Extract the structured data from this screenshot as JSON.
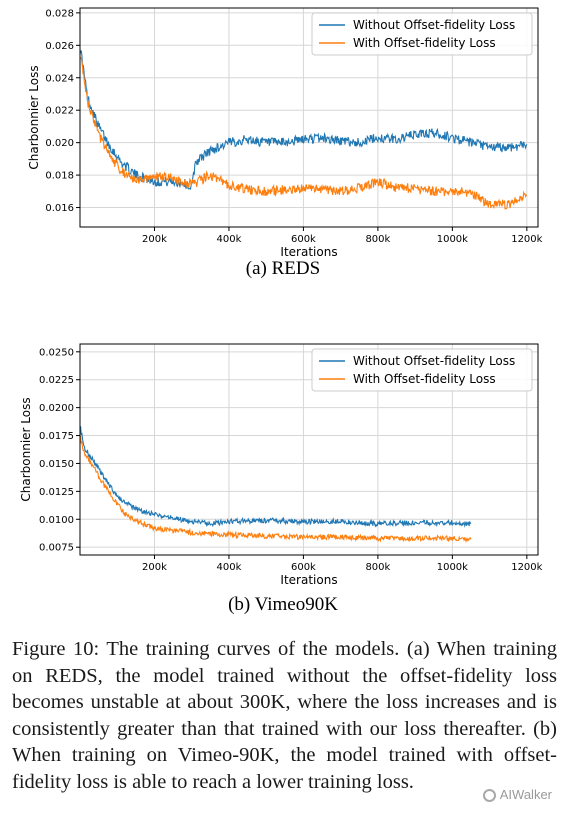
{
  "chart_data": [
    {
      "type": "line",
      "xlabel": "Iterations",
      "ylabel": "Charbonnier Loss",
      "xlim": [
        0,
        1230000
      ],
      "ylim": [
        0.0148,
        0.0283
      ],
      "xticks": [
        200000,
        400000,
        600000,
        800000,
        1000000,
        1200000
      ],
      "xtick_labels": [
        "200k",
        "400k",
        "600k",
        "800k",
        "1000k",
        "1200k"
      ],
      "yticks": [
        0.016,
        0.018,
        0.02,
        0.022,
        0.024,
        0.026,
        0.028
      ],
      "ytick_labels": [
        "0.016",
        "0.018",
        "0.020",
        "0.022",
        "0.024",
        "0.026",
        "0.028"
      ],
      "grid": true,
      "legend": "top-right",
      "series": [
        {
          "name": "Without Offset-fidelity Loss",
          "color": "#1f77b4",
          "x": [
            0,
            20000,
            50000,
            80000,
            110000,
            150000,
            200000,
            250000,
            280000,
            300000,
            310000,
            350000,
            400000,
            450000,
            500000,
            550000,
            600000,
            650000,
            700000,
            750000,
            800000,
            850000,
            900000,
            950000,
            1000000,
            1050000,
            1100000,
            1150000,
            1200000
          ],
          "y": [
            0.026,
            0.0228,
            0.021,
            0.0198,
            0.0188,
            0.018,
            0.0176,
            0.0176,
            0.0175,
            0.0172,
            0.0188,
            0.0195,
            0.02,
            0.0202,
            0.02,
            0.02,
            0.0202,
            0.0203,
            0.0201,
            0.02,
            0.0203,
            0.0202,
            0.0205,
            0.0206,
            0.0203,
            0.02,
            0.0197,
            0.0197,
            0.0199
          ]
        },
        {
          "name": "With Offset-fidelity Loss",
          "color": "#ff7f0e",
          "x": [
            0,
            20000,
            50000,
            80000,
            110000,
            150000,
            200000,
            250000,
            280000,
            300000,
            350000,
            400000,
            450000,
            500000,
            550000,
            600000,
            650000,
            700000,
            750000,
            800000,
            850000,
            900000,
            950000,
            1000000,
            1050000,
            1100000,
            1150000,
            1200000
          ],
          "y": [
            0.0255,
            0.0225,
            0.0205,
            0.0192,
            0.0183,
            0.0176,
            0.0179,
            0.0178,
            0.0176,
            0.0174,
            0.018,
            0.0174,
            0.0171,
            0.017,
            0.0171,
            0.0172,
            0.0171,
            0.017,
            0.0172,
            0.0176,
            0.0172,
            0.0172,
            0.017,
            0.017,
            0.0169,
            0.0162,
            0.0162,
            0.0168
          ]
        }
      ]
    },
    {
      "type": "line",
      "xlabel": "Iterations",
      "ylabel": "Charbonnier Loss",
      "xlim": [
        0,
        1230000
      ],
      "ylim": [
        0.0068,
        0.0257
      ],
      "xticks": [
        200000,
        400000,
        600000,
        800000,
        1000000,
        1200000
      ],
      "xtick_labels": [
        "200k",
        "400k",
        "600k",
        "800k",
        "1000k",
        "1200k"
      ],
      "yticks": [
        0.0075,
        0.01,
        0.0125,
        0.015,
        0.0175,
        0.02,
        0.0225,
        0.025
      ],
      "ytick_labels": [
        "0.0075",
        "0.0100",
        "0.0125",
        "0.0150",
        "0.0175",
        "0.0200",
        "0.0225",
        "0.0250"
      ],
      "grid": true,
      "legend": "top-right",
      "series": [
        {
          "name": "Without Offset-fidelity Loss",
          "color": "#1f77b4",
          "x": [
            0,
            10000,
            30000,
            60000,
            90000,
            120000,
            160000,
            200000,
            250000,
            300000,
            350000,
            400000,
            500000,
            600000,
            700000,
            800000,
            900000,
            1000000,
            1050000
          ],
          "y": [
            0.0185,
            0.0165,
            0.0155,
            0.014,
            0.0125,
            0.0115,
            0.0108,
            0.0104,
            0.0101,
            0.0098,
            0.0096,
            0.0098,
            0.0099,
            0.0098,
            0.0098,
            0.0096,
            0.0097,
            0.0097,
            0.0096
          ]
        },
        {
          "name": "With Offset-fidelity Loss",
          "color": "#ff7f0e",
          "x": [
            0,
            10000,
            30000,
            60000,
            90000,
            120000,
            160000,
            200000,
            250000,
            300000,
            350000,
            400000,
            500000,
            600000,
            700000,
            800000,
            900000,
            1000000,
            1050000
          ],
          "y": [
            0.0175,
            0.016,
            0.015,
            0.0133,
            0.0118,
            0.0105,
            0.0097,
            0.0092,
            0.009,
            0.0088,
            0.0087,
            0.0086,
            0.0085,
            0.0084,
            0.0084,
            0.0083,
            0.0083,
            0.0083,
            0.0082
          ]
        }
      ]
    }
  ],
  "subcaptions": [
    "(a) REDS",
    "(b) Vimeo90K"
  ],
  "caption": "Figure 10: The training curves of the models. (a) When training on REDS, the model trained without the offset-fidelity loss becomes unstable at about 300K, where the loss increases and is consistently greater than that trained with our loss thereafter. (b) When training on Vimeo-90K, the model trained with offset-fidelity loss is able to reach a lower training loss.",
  "watermark": "AIWalker"
}
